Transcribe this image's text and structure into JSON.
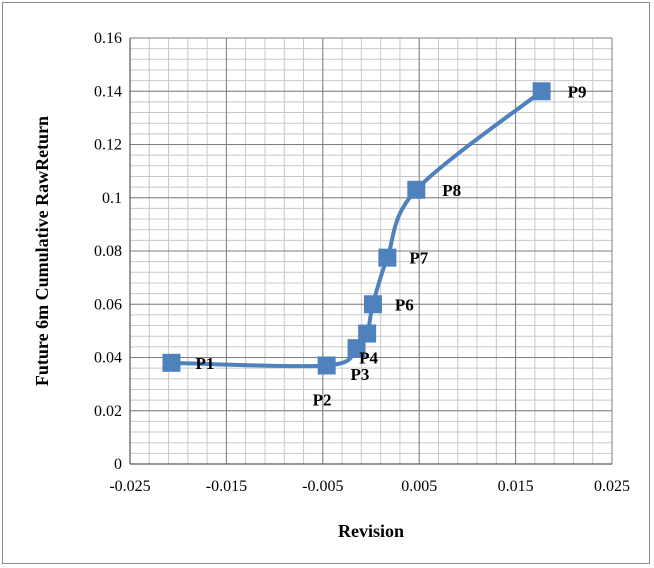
{
  "chart_data": {
    "type": "scatter",
    "title": "",
    "xlabel": "Revision",
    "ylabel": "Future 6m Cumulative RawReturn",
    "xlim": [
      -0.025,
      0.025
    ],
    "ylim": [
      0,
      0.16
    ],
    "x_ticks": [
      "-0.025",
      "-0.015",
      "-0.005",
      "0.005",
      "0.015",
      "0.025"
    ],
    "y_ticks": [
      "0",
      "0.02",
      "0.04",
      "0.06",
      "0.08",
      "0.1",
      "0.12",
      "0.14",
      "0.16"
    ],
    "grid": true,
    "marker": "square",
    "line": "smooth",
    "color": "#4f81bd",
    "series": [
      {
        "points": [
          {
            "label": "P1",
            "x": -0.0207,
            "y": 0.038
          },
          {
            "label": "P2",
            "x": -0.0046,
            "y": 0.037
          },
          {
            "label": "P3",
            "x": -0.0015,
            "y": 0.0435
          },
          {
            "label": "P4",
            "x": -0.0004,
            "y": 0.049
          },
          {
            "label": "P6",
            "x": 0.0002,
            "y": 0.06
          },
          {
            "label": "P7",
            "x": 0.0017,
            "y": 0.0775
          },
          {
            "label": "P8",
            "x": 0.0047,
            "y": 0.103
          },
          {
            "label": "P9",
            "x": 0.0177,
            "y": 0.14
          }
        ]
      }
    ]
  }
}
